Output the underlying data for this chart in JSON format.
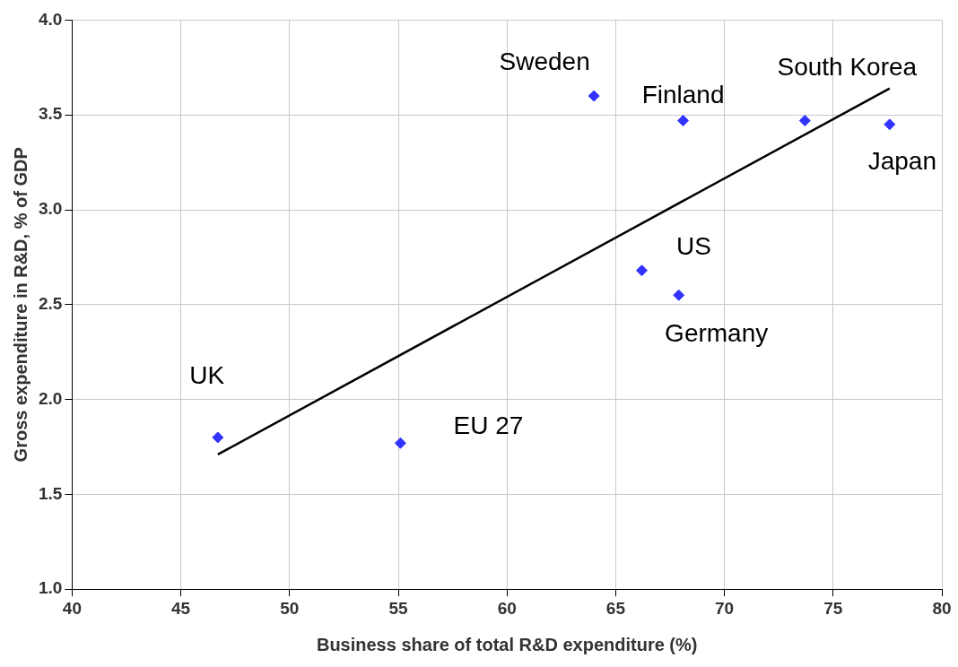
{
  "chart_data": {
    "type": "scatter",
    "xlabel": "Business share of total R&D expenditure (%)",
    "ylabel": "Gross expenditure in R&D, % of GDP",
    "xlim": [
      40,
      80
    ],
    "xticks": [
      40,
      45,
      50,
      55,
      60,
      65,
      70,
      75,
      80
    ],
    "ylim": [
      1.0,
      4.0
    ],
    "yticks": [
      {
        "value": 1,
        "label": "1.0"
      },
      {
        "value": 1.5,
        "label": "1.5"
      },
      {
        "value": 2,
        "label": "2.0"
      },
      {
        "value": 2.5,
        "label": "2.5"
      },
      {
        "value": 3,
        "label": "3.0"
      },
      {
        "value": 3.5,
        "label": "3.5"
      },
      {
        "value": 4,
        "label": "4.0"
      }
    ],
    "grid": true,
    "legend": false,
    "marker": "diamond",
    "series": [
      {
        "color": "#3333ff",
        "x": [
          46.7,
          55.1,
          64.0,
          68.1,
          73.7,
          77.6,
          66.2,
          67.9
        ],
        "values": [
          1.8,
          1.77,
          3.6,
          3.47,
          3.47,
          3.45,
          2.68,
          2.55
        ]
      },
      {
        "type": "line",
        "color": "#000000",
        "x": [
          46.7,
          77.6
        ],
        "values": [
          1.71,
          3.64
        ],
        "marker": "none"
      }
    ],
    "annotations": [
      {
        "text": "UK",
        "x": 46.7,
        "y": 1.8
      },
      {
        "text": "EU 27",
        "x": 55.1,
        "y": 1.77
      },
      {
        "text": "Sweden",
        "x": 64.0,
        "y": 3.6
      },
      {
        "text": "Finland",
        "x": 68.1,
        "y": 3.47
      },
      {
        "text": "South Korea",
        "x": 73.7,
        "y": 3.47
      },
      {
        "text": "Japan",
        "x": 77.6,
        "y": 3.45
      },
      {
        "text": "US",
        "x": 66.2,
        "y": 2.68
      },
      {
        "text": "Germany",
        "x": 67.9,
        "y": 2.55
      }
    ]
  }
}
